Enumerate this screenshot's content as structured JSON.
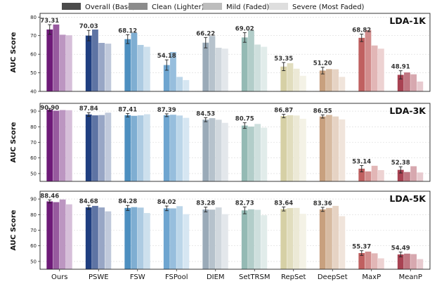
{
  "chart_data": {
    "type": "bar",
    "categories": [
      "Ours",
      "PSWE",
      "FSW",
      "FSPool",
      "DIEM",
      "SetTRSM",
      "RepSet",
      "DeepSet",
      "MaxP",
      "MeanP"
    ],
    "category_colors": [
      "#6e1a78",
      "#1f3e80",
      "#4d8fc0",
      "#6ea5d0",
      "#9aaab8",
      "#94bab4",
      "#d6d0a5",
      "#c8a07e",
      "#c06060",
      "#a84252"
    ],
    "legend": {
      "placement": "top",
      "entries": [
        "Overall (Base)",
        "Clean (Lighter)",
        "Mild (Faded)",
        "Severe (Most Faded)"
      ],
      "swatch_colors": [
        "#4b4b4b",
        "#8c8c8c",
        "#bdbdbd",
        "#dedede"
      ]
    },
    "panels": [
      {
        "title": "LDA-1K",
        "ylabel": "AUC Score",
        "ylim": [
          40,
          82
        ],
        "yticks": [
          40,
          50,
          60,
          70,
          80
        ],
        "grid": true,
        "value_labels": [
          "73.31",
          "70.03",
          "68.12",
          "54.18",
          "66.22",
          "69.02",
          "53.35",
          "51.20",
          "68.82",
          "48.91"
        ],
        "series": [
          {
            "name": "Overall (Base)",
            "values": [
              73.31,
              70.03,
              68.12,
              54.18,
              66.22,
              69.02,
              53.35,
              51.2,
              68.82,
              48.91
            ],
            "errors": [
              2.6,
              2.8,
              2.4,
              2.8,
              2.8,
              2.6,
              2.2,
              1.8,
              2.0,
              2.2
            ]
          },
          {
            "name": "Clean (Lighter)",
            "values": [
              76.0,
              73.3,
              71.5,
              61.2,
              69.8,
              72.8,
              55.2,
              52.0,
              73.0,
              50.2
            ]
          },
          {
            "name": "Mild (Faded)",
            "values": [
              70.5,
              66.1,
              65.0,
              47.8,
              63.5,
              65.2,
              52.2,
              51.9,
              64.7,
              49.2
            ]
          },
          {
            "name": "Severe (Most Faded)",
            "values": [
              70.2,
              65.7,
              64.0,
              46.1,
              63.0,
              64.0,
              48.4,
              47.8,
              63.0,
              45.3
            ]
          }
        ]
      },
      {
        "title": "LDA-3K",
        "ylabel": "AUC Score",
        "ylim": [
          45,
          95
        ],
        "yticks": [
          50,
          60,
          70,
          80,
          90
        ],
        "grid": true,
        "value_labels": [
          "90.90",
          "87.84",
          "87.41",
          "87.39",
          "84.53",
          "80.75",
          "86.87",
          "86.55",
          "53.14",
          "52.38"
        ],
        "series": [
          {
            "name": "Overall (Base)",
            "values": [
              90.9,
              87.84,
              87.41,
              87.39,
              84.53,
              80.75,
              86.87,
              86.55,
              53.14,
              52.38
            ],
            "errors": [
              0.9,
              1.2,
              1.1,
              0.9,
              1.3,
              1.8,
              1.1,
              1.0,
              2.0,
              2.0
            ]
          },
          {
            "name": "Clean (Lighter)",
            "values": [
              90.3,
              87.3,
              87.0,
              87.7,
              85.5,
              80.1,
              87.4,
              87.6,
              51.4,
              51.0
            ]
          },
          {
            "name": "Mild (Faded)",
            "values": [
              90.7,
              87.5,
              87.3,
              87.2,
              84.5,
              81.8,
              87.2,
              86.6,
              55.0,
              54.7
            ]
          },
          {
            "name": "Severe (Most Faded)",
            "values": [
              90.6,
              89.0,
              88.0,
              85.7,
              82.5,
              79.4,
              85.1,
              84.7,
              52.2,
              50.7
            ]
          }
        ]
      },
      {
        "title": "LDA-5K",
        "ylabel": "AUC Score",
        "ylim": [
          45,
          95
        ],
        "yticks": [
          50,
          60,
          70,
          80,
          90
        ],
        "grid": true,
        "value_labels": [
          "88.46",
          "84.68",
          "84.28",
          "84.02",
          "83.28",
          "82.73",
          "83.64",
          "83.36",
          "55.37",
          "54.49"
        ],
        "series": [
          {
            "name": "Overall (Base)",
            "values": [
              88.46,
              84.68,
              84.28,
              84.02,
              83.28,
              82.73,
              83.64,
              83.36,
              55.37,
              54.49
            ],
            "errors": [
              1.0,
              1.3,
              1.6,
              1.5,
              1.5,
              2.2,
              1.3,
              1.3,
              1.5,
              1.5
            ]
          },
          {
            "name": "Clean (Lighter)",
            "values": [
              88.0,
              85.6,
              84.8,
              84.0,
              83.2,
              83.4,
              84.2,
              84.3,
              56.3,
              55.0
            ]
          },
          {
            "name": "Mild (Faded)",
            "values": [
              89.7,
              84.6,
              84.5,
              85.4,
              84.6,
              83.1,
              84.3,
              85.6,
              55.2,
              54.7
            ]
          },
          {
            "name": "Severe (Most Faded)",
            "values": [
              86.6,
              82.1,
              81.0,
              80.3,
              80.3,
              79.6,
              80.5,
              79.0,
              52.0,
              51.5
            ]
          }
        ]
      }
    ]
  }
}
